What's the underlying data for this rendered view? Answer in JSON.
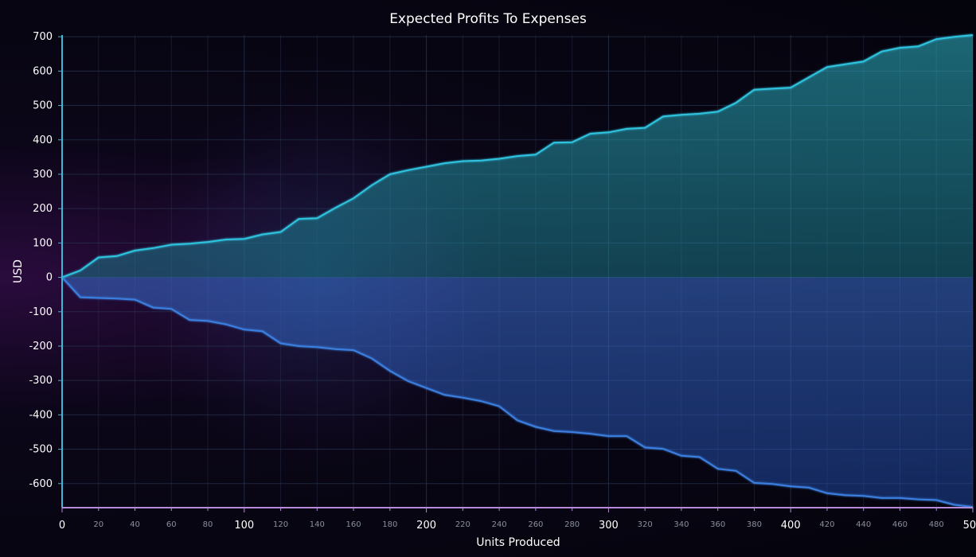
{
  "chart_data": {
    "type": "area",
    "title": "Expected Profits To Expenses",
    "xlabel": "Units Produced",
    "ylabel": "USD",
    "xlim": [
      0,
      500
    ],
    "ylim": [
      -670,
      705
    ],
    "grid": true,
    "y_ticks": [
      700,
      600,
      500,
      400,
      300,
      200,
      100,
      0,
      -100,
      -200,
      -300,
      -400,
      -500,
      -600
    ],
    "x_major_ticks": [
      0,
      100,
      200,
      300,
      400,
      500
    ],
    "x_minor_ticks": [
      20,
      40,
      60,
      80,
      120,
      140,
      160,
      180,
      220,
      240,
      260,
      280,
      320,
      340,
      360,
      380,
      420,
      440,
      460,
      480
    ],
    "x": [
      0,
      10,
      20,
      30,
      40,
      50,
      60,
      70,
      80,
      90,
      100,
      110,
      120,
      130,
      140,
      150,
      160,
      170,
      180,
      190,
      200,
      210,
      220,
      230,
      240,
      250,
      260,
      270,
      280,
      290,
      300,
      310,
      320,
      330,
      340,
      350,
      360,
      370,
      380,
      390,
      400,
      410,
      420,
      430,
      440,
      450,
      460,
      470,
      480,
      490,
      500
    ],
    "series": [
      {
        "color": "#2fc3df",
        "values": [
          0,
          20,
          58,
          62,
          78,
          85,
          95,
          98,
          103,
          110,
          112,
          125,
          132,
          170,
          172,
          202,
          230,
          268,
          300,
          312,
          322,
          332,
          338,
          340,
          345,
          353,
          357,
          392,
          393,
          418,
          422,
          432,
          435,
          468,
          473,
          476,
          482,
          508,
          546,
          549,
          552,
          582,
          612,
          620,
          628,
          657,
          668,
          672,
          693,
          700,
          705
        ]
      },
      {
        "color": "#3a7fe0",
        "values": [
          0,
          -58,
          -60,
          -62,
          -65,
          -88,
          -92,
          -124,
          -127,
          -137,
          -152,
          -157,
          -192,
          -200,
          -203,
          -209,
          -212,
          -236,
          -272,
          -302,
          -322,
          -342,
          -350,
          -360,
          -375,
          -416,
          -435,
          -447,
          -450,
          -455,
          -462,
          -462,
          -495,
          -499,
          -519,
          -523,
          -557,
          -563,
          -598,
          -601,
          -608,
          -612,
          -628,
          -634,
          -636,
          -642,
          -642,
          -646,
          -648,
          -662,
          -668
        ]
      }
    ]
  }
}
